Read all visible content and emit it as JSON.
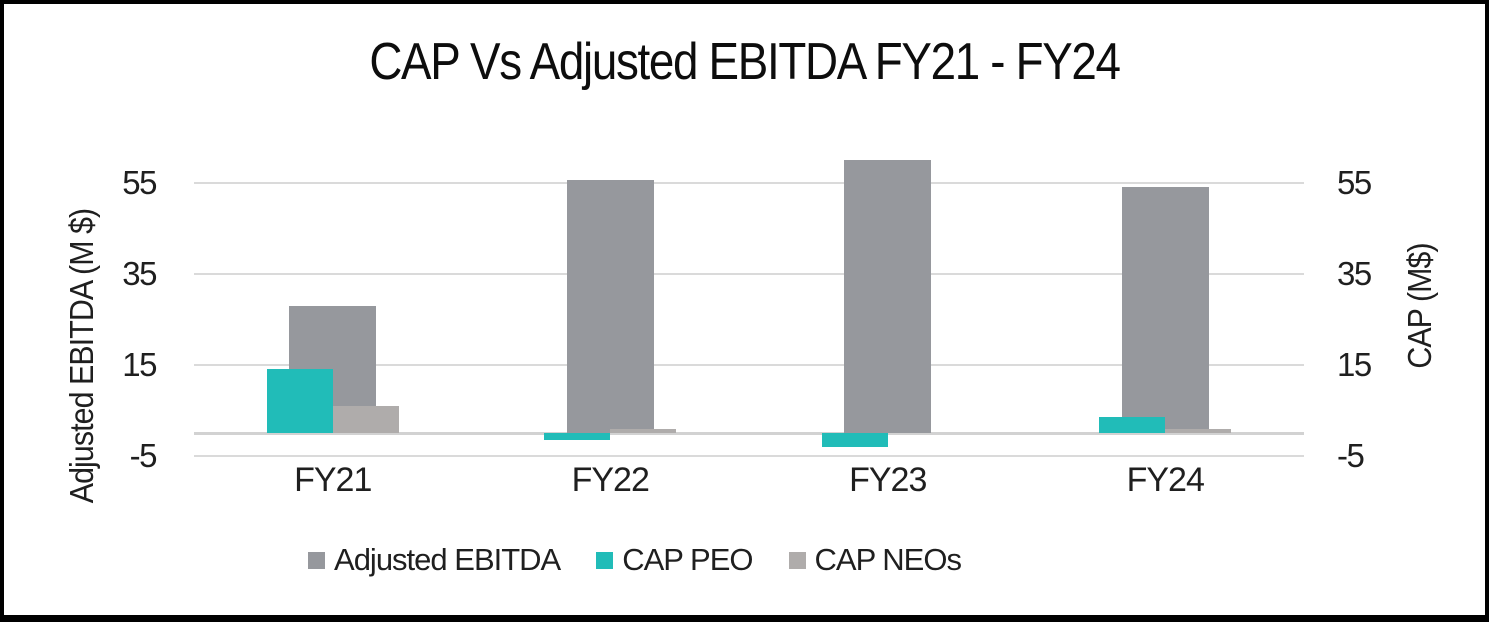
{
  "title": "CAP Vs Adjusted EBITDA FY21 - FY24",
  "left_axis": {
    "label": "Adjusted EBITDA (M $)",
    "ticks": [
      55,
      35,
      15,
      -5
    ]
  },
  "right_axis": {
    "label": "CAP (M$)",
    "ticks": [
      55,
      35,
      15,
      -5
    ]
  },
  "x_axis": {
    "categories": [
      "FY21",
      "FY22",
      "FY23",
      "FY24"
    ]
  },
  "legend": [
    {
      "label": "Adjusted EBITDA",
      "color": "#96989d"
    },
    {
      "label": "CAP PEO",
      "color": "#21bcb8"
    },
    {
      "label": "CAP NEOs",
      "color": "#afacab"
    }
  ],
  "colors": {
    "adjusted_ebitda": "#96989d",
    "cap_peo": "#21bcb8",
    "cap_neos": "#afacab",
    "gridline": "#dadada",
    "zero_line": "#d2d2d2",
    "text": "#1f1f1f"
  },
  "chart_data": {
    "type": "bar",
    "title": "CAP Vs Adjusted EBITDA FY21 - FY24",
    "categories": [
      "FY21",
      "FY22",
      "FY23",
      "FY24"
    ],
    "series": [
      {
        "name": "Adjusted EBITDA",
        "axis": "primary",
        "color": "#96989d",
        "values": [
          28,
          55.5,
          60,
          54
        ]
      },
      {
        "name": "CAP PEO",
        "axis": "secondary",
        "color": "#21bcb8",
        "values": [
          14,
          -1.5,
          -3,
          3.5
        ]
      },
      {
        "name": "CAP NEOs",
        "axis": "secondary",
        "color": "#afacab",
        "values": [
          6,
          1,
          0,
          1
        ]
      }
    ],
    "ylabel_left": "Adjusted EBITDA (M $)",
    "ylabel_right": "CAP (M$)",
    "ylim": [
      -5,
      65
    ],
    "yticks": [
      -5,
      15,
      35,
      55
    ],
    "grid": true,
    "legend_position": "bottom"
  }
}
